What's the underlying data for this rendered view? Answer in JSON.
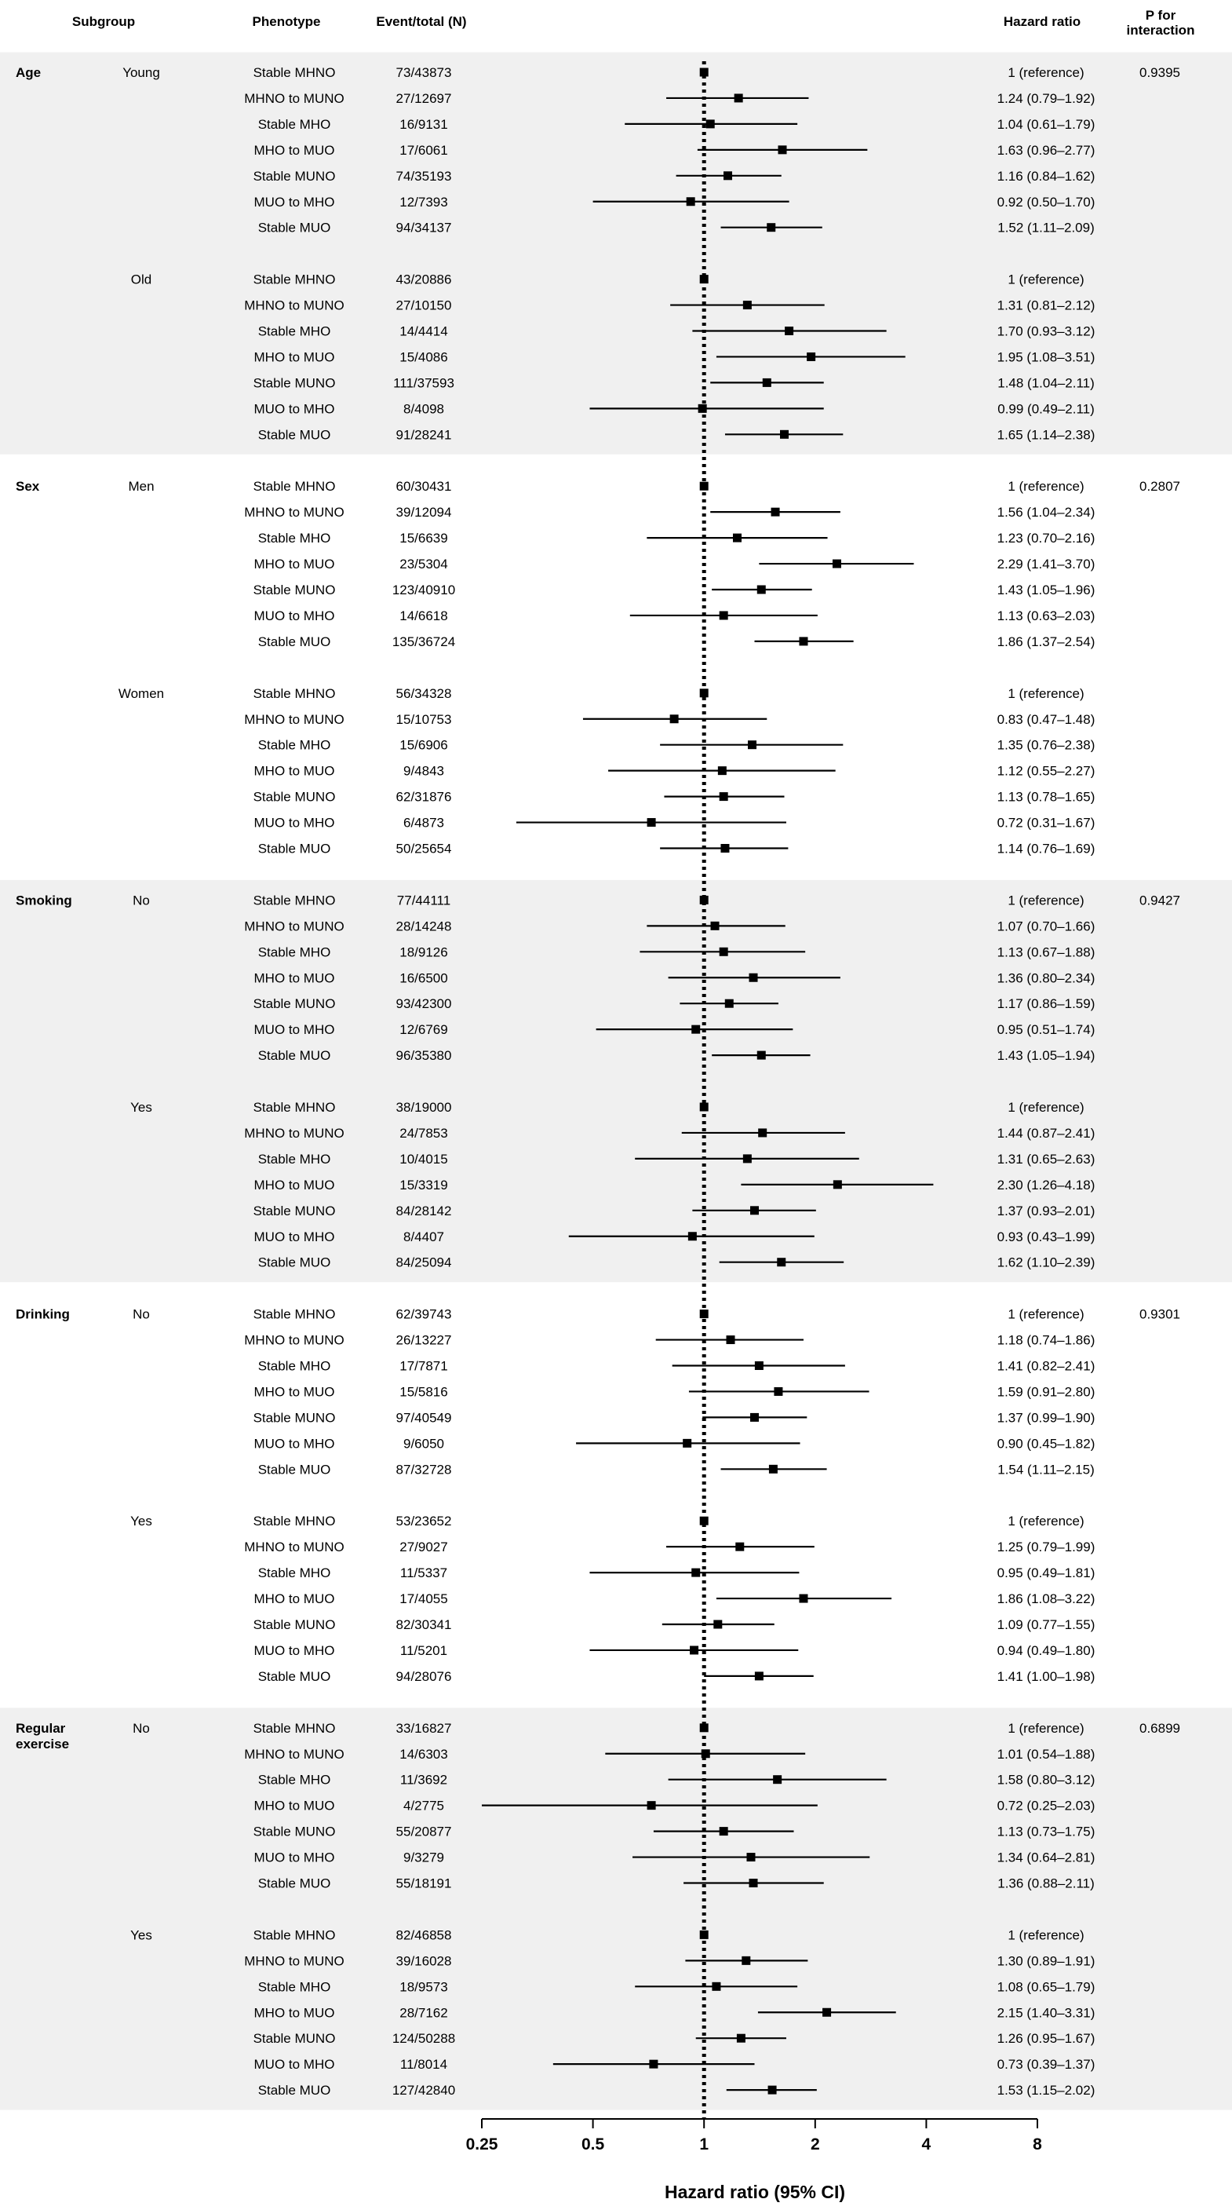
{
  "headers": {
    "subgroup": "Subgroup",
    "phenotype": "Phenotype",
    "event_total": "Event/total (N)",
    "hazard_ratio": "Hazard ratio",
    "p_interaction_line1": "P for",
    "p_interaction_line2": "interaction"
  },
  "chart_data": {
    "type": "forest",
    "xlabel": "Hazard ratio (95% CI)",
    "x_scale": "log2",
    "xlim": [
      0.25,
      8
    ],
    "x_ticks": [
      0.25,
      0.5,
      1,
      2,
      4,
      8
    ],
    "x_tick_labels": [
      "0.25",
      "0.5",
      "1",
      "2",
      "4",
      "8"
    ],
    "reference_line": 1,
    "groups": [
      {
        "subgroup": [
          "Age"
        ],
        "shaded": true,
        "p_interaction": "0.9395",
        "levels": [
          {
            "level": "Young",
            "rows": [
              {
                "phenotype": "Stable MHNO",
                "events": "73/43873",
                "hr": 1,
                "lo": 1,
                "hi": 1,
                "label": "1 (reference)"
              },
              {
                "phenotype": "MHNO to MUNO",
                "events": "27/12697",
                "hr": 1.24,
                "lo": 0.79,
                "hi": 1.92,
                "label": "1.24 (0.79–1.92)"
              },
              {
                "phenotype": "Stable MHO",
                "events": "16/9131",
                "hr": 1.04,
                "lo": 0.61,
                "hi": 1.79,
                "label": "1.04 (0.61–1.79)"
              },
              {
                "phenotype": "MHO to MUO",
                "events": "17/6061",
                "hr": 1.63,
                "lo": 0.96,
                "hi": 2.77,
                "label": "1.63 (0.96–2.77)"
              },
              {
                "phenotype": "Stable MUNO",
                "events": "74/35193",
                "hr": 1.16,
                "lo": 0.84,
                "hi": 1.62,
                "label": "1.16 (0.84–1.62)"
              },
              {
                "phenotype": "MUO to MHO",
                "events": "12/7393",
                "hr": 0.92,
                "lo": 0.5,
                "hi": 1.7,
                "label": "0.92 (0.50–1.70)"
              },
              {
                "phenotype": "Stable MUO",
                "events": "94/34137",
                "hr": 1.52,
                "lo": 1.11,
                "hi": 2.09,
                "label": "1.52 (1.11–2.09)"
              }
            ]
          },
          {
            "level": "Old",
            "rows": [
              {
                "phenotype": "Stable MHNO",
                "events": "43/20886",
                "hr": 1,
                "lo": 1,
                "hi": 1,
                "label": "1 (reference)"
              },
              {
                "phenotype": "MHNO to MUNO",
                "events": "27/10150",
                "hr": 1.31,
                "lo": 0.81,
                "hi": 2.12,
                "label": "1.31 (0.81–2.12)"
              },
              {
                "phenotype": "Stable MHO",
                "events": "14/4414",
                "hr": 1.7,
                "lo": 0.93,
                "hi": 3.12,
                "label": "1.70 (0.93–3.12)"
              },
              {
                "phenotype": "MHO to MUO",
                "events": "15/4086",
                "hr": 1.95,
                "lo": 1.08,
                "hi": 3.51,
                "label": "1.95 (1.08–3.51)"
              },
              {
                "phenotype": "Stable MUNO",
                "events": "111/37593",
                "hr": 1.48,
                "lo": 1.04,
                "hi": 2.11,
                "label": "1.48 (1.04–2.11)"
              },
              {
                "phenotype": "MUO to MHO",
                "events": "8/4098",
                "hr": 0.99,
                "lo": 0.49,
                "hi": 2.11,
                "label": "0.99 (0.49–2.11)"
              },
              {
                "phenotype": "Stable MUO",
                "events": "91/28241",
                "hr": 1.65,
                "lo": 1.14,
                "hi": 2.38,
                "label": "1.65 (1.14–2.38)"
              }
            ]
          }
        ]
      },
      {
        "subgroup": [
          "Sex"
        ],
        "shaded": false,
        "p_interaction": "0.2807",
        "levels": [
          {
            "level": "Men",
            "rows": [
              {
                "phenotype": "Stable MHNO",
                "events": "60/30431",
                "hr": 1,
                "lo": 1,
                "hi": 1,
                "label": "1 (reference)"
              },
              {
                "phenotype": "MHNO to MUNO",
                "events": "39/12094",
                "hr": 1.56,
                "lo": 1.04,
                "hi": 2.34,
                "label": "1.56 (1.04–2.34)"
              },
              {
                "phenotype": "Stable MHO",
                "events": "15/6639",
                "hr": 1.23,
                "lo": 0.7,
                "hi": 2.16,
                "label": "1.23 (0.70–2.16)"
              },
              {
                "phenotype": "MHO to MUO",
                "events": "23/5304",
                "hr": 2.29,
                "lo": 1.41,
                "hi": 3.7,
                "label": "2.29 (1.41–3.70)"
              },
              {
                "phenotype": "Stable MUNO",
                "events": "123/40910",
                "hr": 1.43,
                "lo": 1.05,
                "hi": 1.96,
                "label": "1.43 (1.05–1.96)"
              },
              {
                "phenotype": "MUO to MHO",
                "events": "14/6618",
                "hr": 1.13,
                "lo": 0.63,
                "hi": 2.03,
                "label": "1.13 (0.63–2.03)"
              },
              {
                "phenotype": "Stable MUO",
                "events": "135/36724",
                "hr": 1.86,
                "lo": 1.37,
                "hi": 2.54,
                "label": "1.86 (1.37–2.54)"
              }
            ]
          },
          {
            "level": "Women",
            "rows": [
              {
                "phenotype": "Stable MHNO",
                "events": "56/34328",
                "hr": 1,
                "lo": 1,
                "hi": 1,
                "label": "1 (reference)"
              },
              {
                "phenotype": "MHNO to MUNO",
                "events": "15/10753",
                "hr": 0.83,
                "lo": 0.47,
                "hi": 1.48,
                "label": "0.83 (0.47–1.48)"
              },
              {
                "phenotype": "Stable MHO",
                "events": "15/6906",
                "hr": 1.35,
                "lo": 0.76,
                "hi": 2.38,
                "label": "1.35 (0.76–2.38)"
              },
              {
                "phenotype": "MHO to MUO",
                "events": "9/4843",
                "hr": 1.12,
                "lo": 0.55,
                "hi": 2.27,
                "label": "1.12 (0.55–2.27)"
              },
              {
                "phenotype": "Stable MUNO",
                "events": "62/31876",
                "hr": 1.13,
                "lo": 0.78,
                "hi": 1.65,
                "label": "1.13 (0.78–1.65)"
              },
              {
                "phenotype": "MUO to MHO",
                "events": "6/4873",
                "hr": 0.72,
                "lo": 0.31,
                "hi": 1.67,
                "label": "0.72 (0.31–1.67)"
              },
              {
                "phenotype": "Stable MUO",
                "events": "50/25654",
                "hr": 1.14,
                "lo": 0.76,
                "hi": 1.69,
                "label": "1.14 (0.76–1.69)"
              }
            ]
          }
        ]
      },
      {
        "subgroup": [
          "Smoking"
        ],
        "shaded": true,
        "p_interaction": "0.9427",
        "levels": [
          {
            "level": "No",
            "rows": [
              {
                "phenotype": "Stable MHNO",
                "events": "77/44111",
                "hr": 1,
                "lo": 1,
                "hi": 1,
                "label": "1 (reference)"
              },
              {
                "phenotype": "MHNO to MUNO",
                "events": "28/14248",
                "hr": 1.07,
                "lo": 0.7,
                "hi": 1.66,
                "label": "1.07 (0.70–1.66)"
              },
              {
                "phenotype": "Stable MHO",
                "events": "18/9126",
                "hr": 1.13,
                "lo": 0.67,
                "hi": 1.88,
                "label": "1.13 (0.67–1.88)"
              },
              {
                "phenotype": "MHO to MUO",
                "events": "16/6500",
                "hr": 1.36,
                "lo": 0.8,
                "hi": 2.34,
                "label": "1.36 (0.80–2.34)"
              },
              {
                "phenotype": "Stable MUNO",
                "events": "93/42300",
                "hr": 1.17,
                "lo": 0.86,
                "hi": 1.59,
                "label": "1.17 (0.86–1.59)"
              },
              {
                "phenotype": "MUO to MHO",
                "events": "12/6769",
                "hr": 0.95,
                "lo": 0.51,
                "hi": 1.74,
                "label": "0.95 (0.51–1.74)"
              },
              {
                "phenotype": "Stable MUO",
                "events": "96/35380",
                "hr": 1.43,
                "lo": 1.05,
                "hi": 1.94,
                "label": "1.43 (1.05–1.94)"
              }
            ]
          },
          {
            "level": "Yes",
            "rows": [
              {
                "phenotype": "Stable MHNO",
                "events": "38/19000",
                "hr": 1,
                "lo": 1,
                "hi": 1,
                "label": "1 (reference)"
              },
              {
                "phenotype": "MHNO to MUNO",
                "events": "24/7853",
                "hr": 1.44,
                "lo": 0.87,
                "hi": 2.41,
                "label": "1.44 (0.87–2.41)"
              },
              {
                "phenotype": "Stable MHO",
                "events": "10/4015",
                "hr": 1.31,
                "lo": 0.65,
                "hi": 2.63,
                "label": "1.31 (0.65–2.63)"
              },
              {
                "phenotype": "MHO to MUO",
                "events": "15/3319",
                "hr": 2.3,
                "lo": 1.26,
                "hi": 4.18,
                "label": "2.30 (1.26–4.18)"
              },
              {
                "phenotype": "Stable MUNO",
                "events": "84/28142",
                "hr": 1.37,
                "lo": 0.93,
                "hi": 2.01,
                "label": "1.37 (0.93–2.01)"
              },
              {
                "phenotype": "MUO to MHO",
                "events": "8/4407",
                "hr": 0.93,
                "lo": 0.43,
                "hi": 1.99,
                "label": "0.93 (0.43–1.99)"
              },
              {
                "phenotype": "Stable MUO",
                "events": "84/25094",
                "hr": 1.62,
                "lo": 1.1,
                "hi": 2.39,
                "label": "1.62 (1.10–2.39)"
              }
            ]
          }
        ]
      },
      {
        "subgroup": [
          "Drinking"
        ],
        "shaded": false,
        "p_interaction": "0.9301",
        "levels": [
          {
            "level": "No",
            "rows": [
              {
                "phenotype": "Stable MHNO",
                "events": "62/39743",
                "hr": 1,
                "lo": 1,
                "hi": 1,
                "label": "1 (reference)"
              },
              {
                "phenotype": "MHNO to MUNO",
                "events": "26/13227",
                "hr": 1.18,
                "lo": 0.74,
                "hi": 1.86,
                "label": "1.18 (0.74–1.86)"
              },
              {
                "phenotype": "Stable MHO",
                "events": "17/7871",
                "hr": 1.41,
                "lo": 0.82,
                "hi": 2.41,
                "label": "1.41 (0.82–2.41)"
              },
              {
                "phenotype": "MHO to MUO",
                "events": "15/5816",
                "hr": 1.59,
                "lo": 0.91,
                "hi": 2.8,
                "label": "1.59 (0.91–2.80)"
              },
              {
                "phenotype": "Stable MUNO",
                "events": "97/40549",
                "hr": 1.37,
                "lo": 0.99,
                "hi": 1.9,
                "label": "1.37 (0.99–1.90)"
              },
              {
                "phenotype": "MUO to MHO",
                "events": "9/6050",
                "hr": 0.9,
                "lo": 0.45,
                "hi": 1.82,
                "label": "0.90 (0.45–1.82)"
              },
              {
                "phenotype": "Stable MUO",
                "events": "87/32728",
                "hr": 1.54,
                "lo": 1.11,
                "hi": 2.15,
                "label": "1.54 (1.11–2.15)"
              }
            ]
          },
          {
            "level": "Yes",
            "rows": [
              {
                "phenotype": "Stable MHNO",
                "events": "53/23652",
                "hr": 1,
                "lo": 1,
                "hi": 1,
                "label": "1 (reference)"
              },
              {
                "phenotype": "MHNO to MUNO",
                "events": "27/9027",
                "hr": 1.25,
                "lo": 0.79,
                "hi": 1.99,
                "label": "1.25 (0.79–1.99)"
              },
              {
                "phenotype": "Stable MHO",
                "events": "11/5337",
                "hr": 0.95,
                "lo": 0.49,
                "hi": 1.81,
                "label": "0.95 (0.49–1.81)"
              },
              {
                "phenotype": "MHO to MUO",
                "events": "17/4055",
                "hr": 1.86,
                "lo": 1.08,
                "hi": 3.22,
                "label": "1.86 (1.08–3.22)"
              },
              {
                "phenotype": "Stable MUNO",
                "events": "82/30341",
                "hr": 1.09,
                "lo": 0.77,
                "hi": 1.55,
                "label": "1.09 (0.77–1.55)"
              },
              {
                "phenotype": "MUO to MHO",
                "events": "11/5201",
                "hr": 0.94,
                "lo": 0.49,
                "hi": 1.8,
                "label": "0.94 (0.49–1.80)"
              },
              {
                "phenotype": "Stable MUO",
                "events": "94/28076",
                "hr": 1.41,
                "lo": 1.0,
                "hi": 1.98,
                "label": "1.41 (1.00–1.98)"
              }
            ]
          }
        ]
      },
      {
        "subgroup": [
          "Regular",
          "exercise"
        ],
        "shaded": true,
        "p_interaction": "0.6899",
        "levels": [
          {
            "level": "No",
            "rows": [
              {
                "phenotype": "Stable MHNO",
                "events": "33/16827",
                "hr": 1,
                "lo": 1,
                "hi": 1,
                "label": "1 (reference)"
              },
              {
                "phenotype": "MHNO to MUNO",
                "events": "14/6303",
                "hr": 1.01,
                "lo": 0.54,
                "hi": 1.88,
                "label": "1.01 (0.54–1.88)"
              },
              {
                "phenotype": "Stable MHO",
                "events": "11/3692",
                "hr": 1.58,
                "lo": 0.8,
                "hi": 3.12,
                "label": "1.58 (0.80–3.12)"
              },
              {
                "phenotype": "MHO to MUO",
                "events": "4/2775",
                "hr": 0.72,
                "lo": 0.25,
                "hi": 2.03,
                "label": "0.72 (0.25–2.03)"
              },
              {
                "phenotype": "Stable MUNO",
                "events": "55/20877",
                "hr": 1.13,
                "lo": 0.73,
                "hi": 1.75,
                "label": "1.13 (0.73–1.75)"
              },
              {
                "phenotype": "MUO to MHO",
                "events": "9/3279",
                "hr": 1.34,
                "lo": 0.64,
                "hi": 2.81,
                "label": "1.34 (0.64–2.81)"
              },
              {
                "phenotype": "Stable MUO",
                "events": "55/18191",
                "hr": 1.36,
                "lo": 0.88,
                "hi": 2.11,
                "label": "1.36 (0.88–2.11)"
              }
            ]
          },
          {
            "level": "Yes",
            "rows": [
              {
                "phenotype": "Stable MHNO",
                "events": "82/46858",
                "hr": 1,
                "lo": 1,
                "hi": 1,
                "label": "1 (reference)"
              },
              {
                "phenotype": "MHNO to MUNO",
                "events": "39/16028",
                "hr": 1.3,
                "lo": 0.89,
                "hi": 1.91,
                "label": "1.30 (0.89–1.91)"
              },
              {
                "phenotype": "Stable MHO",
                "events": "18/9573",
                "hr": 1.08,
                "lo": 0.65,
                "hi": 1.79,
                "label": "1.08 (0.65–1.79)"
              },
              {
                "phenotype": "MHO to MUO",
                "events": "28/7162",
                "hr": 2.15,
                "lo": 1.4,
                "hi": 3.31,
                "label": "2.15 (1.40–3.31)"
              },
              {
                "phenotype": "Stable MUNO",
                "events": "124/50288",
                "hr": 1.26,
                "lo": 0.95,
                "hi": 1.67,
                "label": "1.26 (0.95–1.67)"
              },
              {
                "phenotype": "MUO to MHO",
                "events": "11/8014",
                "hr": 0.73,
                "lo": 0.39,
                "hi": 1.37,
                "label": "0.73 (0.39–1.37)"
              },
              {
                "phenotype": "Stable MUO",
                "events": "127/42840",
                "hr": 1.53,
                "lo": 1.15,
                "hi": 2.02,
                "label": "1.53 (1.15–2.02)"
              }
            ]
          }
        ]
      }
    ]
  }
}
